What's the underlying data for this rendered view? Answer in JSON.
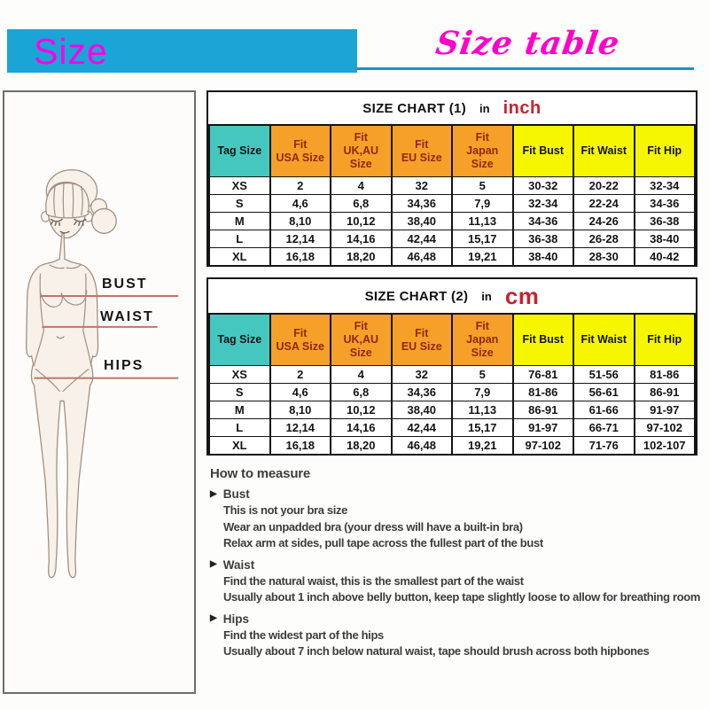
{
  "header": {
    "banner_label": "Size",
    "script_title": "Size table"
  },
  "figure_panel": {
    "labels": {
      "bust": "BUST",
      "waist": "WAIST",
      "hips": "HIPS"
    }
  },
  "bullet_icon": "▶",
  "size_charts": [
    {
      "title": "SIZE CHART (1)",
      "unit_word": "in",
      "unit": "inch",
      "columns": [
        "Tag Size",
        "Fit\nUSA Size",
        "Fit\nUK,AU\nSize",
        "Fit\nEU Size",
        "Fit\nJapan\nSize",
        "Fit Bust",
        "Fit Waist",
        "Fit Hip"
      ],
      "rows": [
        [
          "XS",
          "2",
          "4",
          "32",
          "5",
          "30-32",
          "20-22",
          "32-34"
        ],
        [
          "S",
          "4,6",
          "6,8",
          "34,36",
          "7,9",
          "32-34",
          "22-24",
          "34-36"
        ],
        [
          "M",
          "8,10",
          "10,12",
          "38,40",
          "11,13",
          "34-36",
          "24-26",
          "36-38"
        ],
        [
          "L",
          "12,14",
          "14,16",
          "42,44",
          "15,17",
          "36-38",
          "26-28",
          "38-40"
        ],
        [
          "XL",
          "16,18",
          "18,20",
          "46,48",
          "19,21",
          "38-40",
          "28-30",
          "40-42"
        ]
      ]
    },
    {
      "title": "SIZE CHART (2)",
      "unit_word": "in",
      "unit": "cm",
      "columns": [
        "Tag Size",
        "Fit\nUSA Size",
        "Fit\nUK,AU\nSize",
        "Fit\nEU Size",
        "Fit\nJapan\nSize",
        "Fit Bust",
        "Fit Waist",
        "Fit Hip"
      ],
      "rows": [
        [
          "XS",
          "2",
          "4",
          "32",
          "5",
          "76-81",
          "51-56",
          "81-86"
        ],
        [
          "S",
          "4,6",
          "6,8",
          "34,36",
          "7,9",
          "81-86",
          "56-61",
          "86-91"
        ],
        [
          "M",
          "8,10",
          "10,12",
          "38,40",
          "11,13",
          "86-91",
          "61-66",
          "91-97"
        ],
        [
          "L",
          "12,14",
          "14,16",
          "42,44",
          "15,17",
          "91-97",
          "66-71",
          "97-102"
        ],
        [
          "XL",
          "16,18",
          "18,20",
          "46,48",
          "19,21",
          "97-102",
          "71-76",
          "102-107"
        ]
      ]
    }
  ],
  "how_to_measure": {
    "title": "How to measure",
    "sections": [
      {
        "label": "Bust",
        "lines": [
          "This is not your bra size",
          "Wear an unpadded bra (your dress will have a built-in bra)",
          "Relax arm at sides, pull tape across the fullest part of the bust"
        ]
      },
      {
        "label": "Waist",
        "lines": [
          "Find the natural waist, this is the smallest part of the waist",
          "Usually about 1 inch above belly button, keep tape slightly loose to allow for breathing room"
        ]
      },
      {
        "label": "Hips",
        "lines": [
          "Find the widest part of the hips",
          "Usually about 7 inch below natural waist, tape should brush across both hipbones"
        ]
      }
    ]
  },
  "colors": {
    "banner_bg": "#1ba4d6",
    "banner_text": "#ff00e6",
    "script_title_pink": "#ff00cc",
    "underline_cyan": "#1795c4",
    "tag_header_bg": "#45c7c0",
    "fit_header_bg": "#f5a028",
    "fit_header_text": "#8f2a0a",
    "measure_header_bg": "#f6f600",
    "unit_red": "#c4242e",
    "measure_line": "#bf7668"
  }
}
